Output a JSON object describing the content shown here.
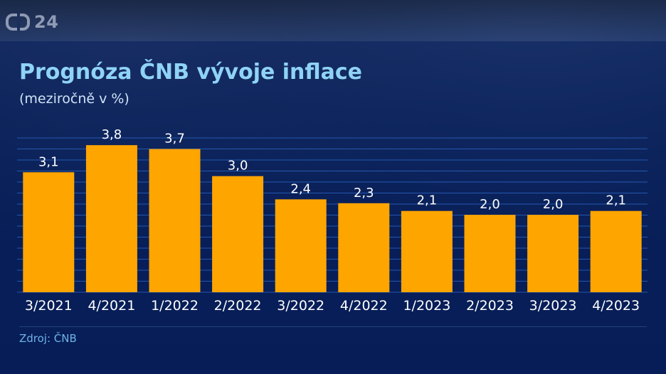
{
  "logo": {
    "label": "24"
  },
  "chart_data": {
    "type": "bar",
    "title": "Prognóza ČNB vývoje inflace",
    "subtitle": "(meziročně v %)",
    "categories": [
      "3/2021",
      "4/2021",
      "1/2022",
      "2/2022",
      "3/2022",
      "4/2022",
      "1/2023",
      "2/2023",
      "3/2023",
      "4/2023"
    ],
    "values": [
      3.1,
      3.8,
      3.7,
      3.0,
      2.4,
      2.3,
      2.1,
      2.0,
      2.0,
      2.1
    ],
    "value_labels": [
      "3,1",
      "3,8",
      "3,7",
      "3,0",
      "2,4",
      "2,3",
      "2,1",
      "2,0",
      "2,0",
      "2,1"
    ],
    "ylim": [
      0,
      4
    ],
    "grid": true,
    "bar_color": "#ffa500"
  },
  "source": "Zdroj: ČNB",
  "colors": {
    "title": "#8fd3f6",
    "subtitle": "#cfe3f6",
    "bar": "#ffa500",
    "grid": "#2f6fd2",
    "labels": "#ffffff",
    "source": "#6fb3e6"
  }
}
